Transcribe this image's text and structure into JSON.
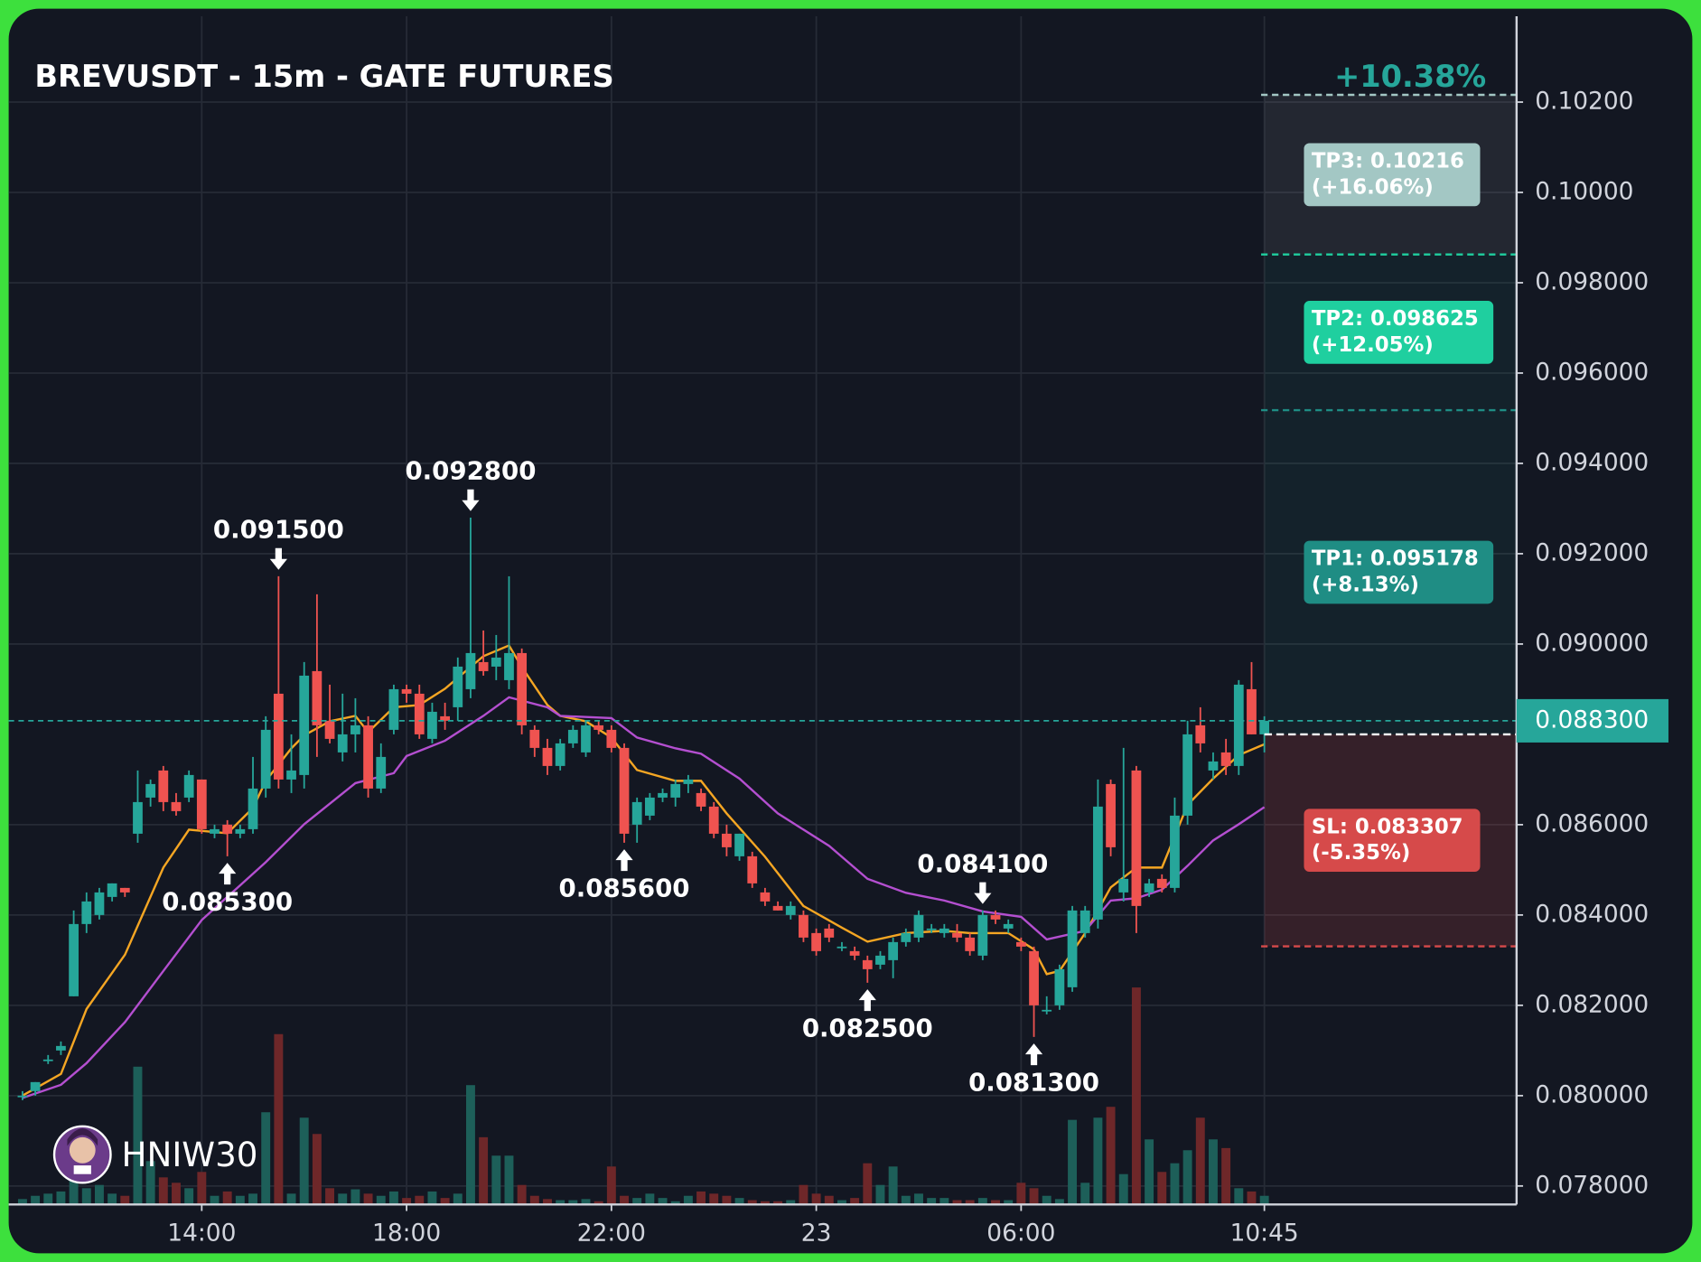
{
  "chart_data": {
    "type": "candlestick",
    "title": "BREVUSDT - 15m - GATE FUTURES",
    "gain_label": "+10.38%",
    "watermark": "HNIW30",
    "up_color": "#26a69a",
    "down_color": "#ef5350",
    "volume_up_color": "#1d5f59",
    "volume_down_color": "#6e2729",
    "grid": true,
    "ylim": [
      0.07759,
      0.1039
    ],
    "xlim": [
      -1.08,
      116.7
    ],
    "yticks": [
      {
        "value": 0.102,
        "label": "0.10200"
      },
      {
        "value": 0.1,
        "label": "0.10000"
      },
      {
        "value": 0.098,
        "label": "0.098000"
      },
      {
        "value": 0.096,
        "label": "0.096000"
      },
      {
        "value": 0.094,
        "label": "0.094000"
      },
      {
        "value": 0.092,
        "label": "0.092000"
      },
      {
        "value": 0.09,
        "label": "0.090000"
      },
      {
        "value": 0.086,
        "label": "0.086000"
      },
      {
        "value": 0.084,
        "label": "0.084000"
      },
      {
        "value": 0.082,
        "label": "0.082000"
      },
      {
        "value": 0.08,
        "label": "0.080000"
      },
      {
        "value": 0.078,
        "label": "0.078000"
      }
    ],
    "xticks": [
      {
        "value": 14,
        "label": "14:00"
      },
      {
        "value": 30,
        "label": "18:00"
      },
      {
        "value": 46,
        "label": "22:00"
      },
      {
        "value": 62,
        "label": "23"
      },
      {
        "value": 78,
        "label": "06:00"
      },
      {
        "value": 97,
        "label": "10:45"
      }
    ],
    "candles": [
      [
        0.08,
        0.0801,
        0.0799,
        0.08
      ],
      [
        0.0801,
        0.0803,
        0.08,
        0.0803
      ],
      [
        0.0808,
        0.0809,
        0.0807,
        0.0808
      ],
      [
        0.081,
        0.0812,
        0.0809,
        0.0811
      ],
      [
        0.0822,
        0.0841,
        0.0822,
        0.0838
      ],
      [
        0.0838,
        0.0845,
        0.0836,
        0.0843
      ],
      [
        0.084,
        0.0846,
        0.0839,
        0.0845
      ],
      [
        0.0844,
        0.0847,
        0.0843,
        0.0847
      ],
      [
        0.0846,
        0.0846,
        0.0844,
        0.0845
      ],
      [
        0.0858,
        0.0872,
        0.0856,
        0.0865
      ],
      [
        0.0866,
        0.087,
        0.0864,
        0.0869
      ],
      [
        0.0872,
        0.0873,
        0.0863,
        0.0865
      ],
      [
        0.0865,
        0.0867,
        0.0862,
        0.0863
      ],
      [
        0.0866,
        0.0872,
        0.0865,
        0.0871
      ],
      [
        0.087,
        0.087,
        0.0858,
        0.0859
      ],
      [
        0.0858,
        0.086,
        0.0857,
        0.0859
      ],
      [
        0.086,
        0.0861,
        0.0853,
        0.0858
      ],
      [
        0.0858,
        0.086,
        0.0857,
        0.0859
      ],
      [
        0.0859,
        0.0875,
        0.0858,
        0.0868
      ],
      [
        0.0868,
        0.0884,
        0.0866,
        0.0881
      ],
      [
        0.0889,
        0.0915,
        0.0868,
        0.087
      ],
      [
        0.087,
        0.088,
        0.0867,
        0.0872
      ],
      [
        0.0871,
        0.0896,
        0.0868,
        0.0893
      ],
      [
        0.0894,
        0.0911,
        0.0875,
        0.0882
      ],
      [
        0.0883,
        0.0891,
        0.0878,
        0.0879
      ],
      [
        0.0876,
        0.0889,
        0.0874,
        0.088
      ],
      [
        0.088,
        0.0888,
        0.0876,
        0.0882
      ],
      [
        0.0882,
        0.0884,
        0.0866,
        0.0868
      ],
      [
        0.0868,
        0.0878,
        0.0867,
        0.0875
      ],
      [
        0.0881,
        0.0891,
        0.088,
        0.089
      ],
      [
        0.089,
        0.0891,
        0.0887,
        0.0889
      ],
      [
        0.0889,
        0.0891,
        0.0879,
        0.088
      ],
      [
        0.0879,
        0.0887,
        0.0878,
        0.0885
      ],
      [
        0.0884,
        0.0887,
        0.0881,
        0.0883
      ],
      [
        0.0886,
        0.0897,
        0.0883,
        0.0895
      ],
      [
        0.089,
        0.0928,
        0.0888,
        0.0898
      ],
      [
        0.0896,
        0.0903,
        0.0893,
        0.0894
      ],
      [
        0.0895,
        0.0902,
        0.0892,
        0.0897
      ],
      [
        0.0892,
        0.0915,
        0.089,
        0.0898
      ],
      [
        0.0898,
        0.0899,
        0.088,
        0.0882
      ],
      [
        0.0881,
        0.0882,
        0.0875,
        0.0877
      ],
      [
        0.0877,
        0.0879,
        0.0871,
        0.0873
      ],
      [
        0.0873,
        0.0879,
        0.0872,
        0.0878
      ],
      [
        0.0878,
        0.0882,
        0.0877,
        0.0881
      ],
      [
        0.0876,
        0.0883,
        0.0875,
        0.0882
      ],
      [
        0.0882,
        0.0883,
        0.088,
        0.0881
      ],
      [
        0.0881,
        0.0882,
        0.0876,
        0.0877
      ],
      [
        0.0877,
        0.0878,
        0.0856,
        0.0858
      ],
      [
        0.086,
        0.0866,
        0.0856,
        0.0865
      ],
      [
        0.0862,
        0.0867,
        0.0861,
        0.0866
      ],
      [
        0.0866,
        0.0868,
        0.0865,
        0.0867
      ],
      [
        0.0866,
        0.087,
        0.0864,
        0.0869
      ],
      [
        0.0869,
        0.0871,
        0.0867,
        0.087
      ],
      [
        0.0867,
        0.0868,
        0.0863,
        0.0864
      ],
      [
        0.0864,
        0.0865,
        0.0857,
        0.0858
      ],
      [
        0.0858,
        0.086,
        0.0853,
        0.0855
      ],
      [
        0.0853,
        0.0858,
        0.0852,
        0.0858
      ],
      [
        0.0853,
        0.0854,
        0.0846,
        0.0847
      ],
      [
        0.0845,
        0.0846,
        0.0842,
        0.0843
      ],
      [
        0.0842,
        0.0843,
        0.0841,
        0.0841
      ],
      [
        0.084,
        0.0843,
        0.0839,
        0.0842
      ],
      [
        0.084,
        0.0841,
        0.0834,
        0.0835
      ],
      [
        0.0836,
        0.0837,
        0.0831,
        0.0832
      ],
      [
        0.0837,
        0.0838,
        0.0834,
        0.0835
      ],
      [
        0.0833,
        0.0834,
        0.0832,
        0.0833
      ],
      [
        0.0832,
        0.0833,
        0.083,
        0.0831
      ],
      [
        0.083,
        0.0831,
        0.0825,
        0.0828
      ],
      [
        0.0829,
        0.0832,
        0.0828,
        0.0831
      ],
      [
        0.083,
        0.0835,
        0.0826,
        0.0834
      ],
      [
        0.0834,
        0.0837,
        0.0833,
        0.0836
      ],
      [
        0.0835,
        0.0841,
        0.0834,
        0.084
      ],
      [
        0.0837,
        0.0838,
        0.0836,
        0.0837
      ],
      [
        0.0836,
        0.0838,
        0.0835,
        0.0837
      ],
      [
        0.0836,
        0.0838,
        0.0834,
        0.0835
      ],
      [
        0.0835,
        0.0836,
        0.0831,
        0.0832
      ],
      [
        0.0831,
        0.0841,
        0.083,
        0.084
      ],
      [
        0.084,
        0.0841,
        0.0838,
        0.0839
      ],
      [
        0.0837,
        0.0839,
        0.0836,
        0.0838
      ],
      [
        0.0834,
        0.0835,
        0.0832,
        0.0833
      ],
      [
        0.0832,
        0.0833,
        0.0813,
        0.082
      ],
      [
        0.0819,
        0.0822,
        0.0818,
        0.0819
      ],
      [
        0.082,
        0.0829,
        0.0819,
        0.0828
      ],
      [
        0.0824,
        0.0842,
        0.0823,
        0.0841
      ],
      [
        0.0836,
        0.0842,
        0.0835,
        0.0841
      ],
      [
        0.0839,
        0.087,
        0.0837,
        0.0864
      ],
      [
        0.0869,
        0.087,
        0.0853,
        0.0855
      ],
      [
        0.0845,
        0.0877,
        0.0843,
        0.0848
      ],
      [
        0.0872,
        0.0873,
        0.0836,
        0.0842
      ],
      [
        0.0845,
        0.0848,
        0.0844,
        0.0847
      ],
      [
        0.0848,
        0.0849,
        0.0845,
        0.0846
      ],
      [
        0.0846,
        0.0866,
        0.0845,
        0.0862
      ],
      [
        0.0862,
        0.0883,
        0.086,
        0.088
      ],
      [
        0.0882,
        0.0886,
        0.0876,
        0.0878
      ],
      [
        0.0872,
        0.0876,
        0.087,
        0.0874
      ],
      [
        0.0876,
        0.0879,
        0.0871,
        0.0873
      ],
      [
        0.0873,
        0.0892,
        0.0871,
        0.0891
      ],
      [
        0.089,
        0.0896,
        0.088,
        0.088
      ],
      [
        0.088,
        0.0884,
        0.0876,
        0.0883
      ]
    ],
    "volume": [
      5,
      8,
      10,
      12,
      30,
      15,
      18,
      10,
      8,
      127,
      40,
      25,
      20,
      15,
      30,
      8,
      12,
      8,
      10,
      85,
      157,
      10,
      80,
      65,
      15,
      10,
      14,
      10,
      8,
      12,
      6,
      8,
      12,
      6,
      10,
      110,
      62,
      45,
      45,
      18,
      8,
      5,
      4,
      4,
      5,
      3,
      35,
      8,
      6,
      10,
      6,
      3,
      8,
      12,
      10,
      8,
      6,
      4,
      3,
      3,
      4,
      18,
      10,
      8,
      4,
      6,
      38,
      18,
      35,
      8,
      10,
      6,
      6,
      4,
      4,
      6,
      4,
      4,
      20,
      15,
      8,
      5,
      78,
      20,
      80,
      90,
      28,
      200,
      60,
      30,
      38,
      50,
      80,
      60,
      52,
      15,
      12,
      8
    ],
    "lines": [
      {
        "color": "#f5a623",
        "x": [
          0,
          3,
          5,
          8,
          11,
          13,
          16,
          18,
          19,
          21,
          22,
          24,
          26,
          27,
          29,
          31,
          33,
          36,
          38,
          39,
          41,
          42,
          44,
          46,
          48,
          51,
          53,
          55,
          58,
          61,
          64,
          66,
          69,
          72,
          74,
          77,
          79,
          80,
          81,
          83,
          85,
          87,
          89,
          91,
          93,
          95,
          97
        ],
        "values": [
          0.08,
          0.08048,
          0.08192,
          0.08312,
          0.08505,
          0.08589,
          0.08581,
          0.08637,
          0.08697,
          0.08769,
          0.08798,
          0.08829,
          0.08841,
          0.08805,
          0.0886,
          0.08865,
          0.08901,
          0.08973,
          0.08997,
          0.08949,
          0.08865,
          0.08841,
          0.08829,
          0.08793,
          0.08721,
          0.08697,
          0.08697,
          0.08625,
          0.08529,
          0.0842,
          0.08372,
          0.08341,
          0.0836,
          0.08365,
          0.0836,
          0.0836,
          0.08324,
          0.08269,
          0.08276,
          0.0836,
          0.08461,
          0.08505,
          0.08505,
          0.08644,
          0.08702,
          0.08754,
          0.08778
        ]
      },
      {
        "color": "#b44fd0",
        "x": [
          0,
          3,
          5,
          8,
          11,
          14,
          19,
          22,
          26,
          29,
          30,
          33,
          36,
          38,
          41,
          42,
          46,
          48,
          51,
          53,
          56,
          59,
          63,
          66,
          69,
          72,
          75,
          78,
          80,
          83,
          85,
          87,
          89,
          91,
          93,
          95,
          97
        ],
        "values": [
          0.07995,
          0.08024,
          0.08072,
          0.08163,
          0.08276,
          0.08389,
          0.08517,
          0.08601,
          0.08692,
          0.08714,
          0.08752,
          0.08786,
          0.08841,
          0.08882,
          0.0886,
          0.08841,
          0.08836,
          0.08793,
          0.08769,
          0.08757,
          0.08702,
          0.08625,
          0.08553,
          0.0848,
          0.08449,
          0.08432,
          0.08408,
          0.08396,
          0.08346,
          0.08365,
          0.08432,
          0.08437,
          0.08456,
          0.08509,
          0.08565,
          0.08601,
          0.08639
        ]
      }
    ],
    "annotations": [
      {
        "index": 20,
        "value": 0.0915,
        "label": "0.091500",
        "side": "high"
      },
      {
        "index": 35,
        "value": 0.0928,
        "label": "0.092800",
        "side": "high"
      },
      {
        "index": 16,
        "value": 0.0853,
        "label": "0.085300",
        "side": "low"
      },
      {
        "index": 47,
        "value": 0.0856,
        "label": "0.085600",
        "side": "low"
      },
      {
        "index": 66,
        "value": 0.0825,
        "label": "0.082500",
        "side": "low"
      },
      {
        "index": 75,
        "value": 0.0841,
        "label": "0.084100",
        "side": "high"
      },
      {
        "index": 79,
        "value": 0.0813,
        "label": "0.081300",
        "side": "low"
      }
    ],
    "entry": {
      "value": 0.088,
      "color": "#ffffff"
    },
    "last_price": {
      "value": 0.0883,
      "label": "0.088300",
      "color": "#26a69a"
    },
    "levels": [
      {
        "value": 0.10216,
        "label": "TP3: 0.10216",
        "change": "(+16.06%)",
        "color": "#a3c7c4",
        "zone": "rgba(255,255,255,0.07)"
      },
      {
        "value": 0.098625,
        "label": "TP2: 0.098625",
        "change": "(+12.05%)",
        "color": "#1fcf9f",
        "zone": "rgba(38,166,154,0.08)"
      },
      {
        "value": 0.095178,
        "label": "TP1: 0.095178",
        "change": "(+8.13%)",
        "color": "#1f8d84",
        "zone": "rgba(38,166,154,0.08)"
      },
      {
        "value": 0.083307,
        "label": "SL: 0.083307",
        "change": "(-5.35%)",
        "color": "#d64a4a",
        "zone": "rgba(239,83,80,0.16)"
      }
    ]
  }
}
